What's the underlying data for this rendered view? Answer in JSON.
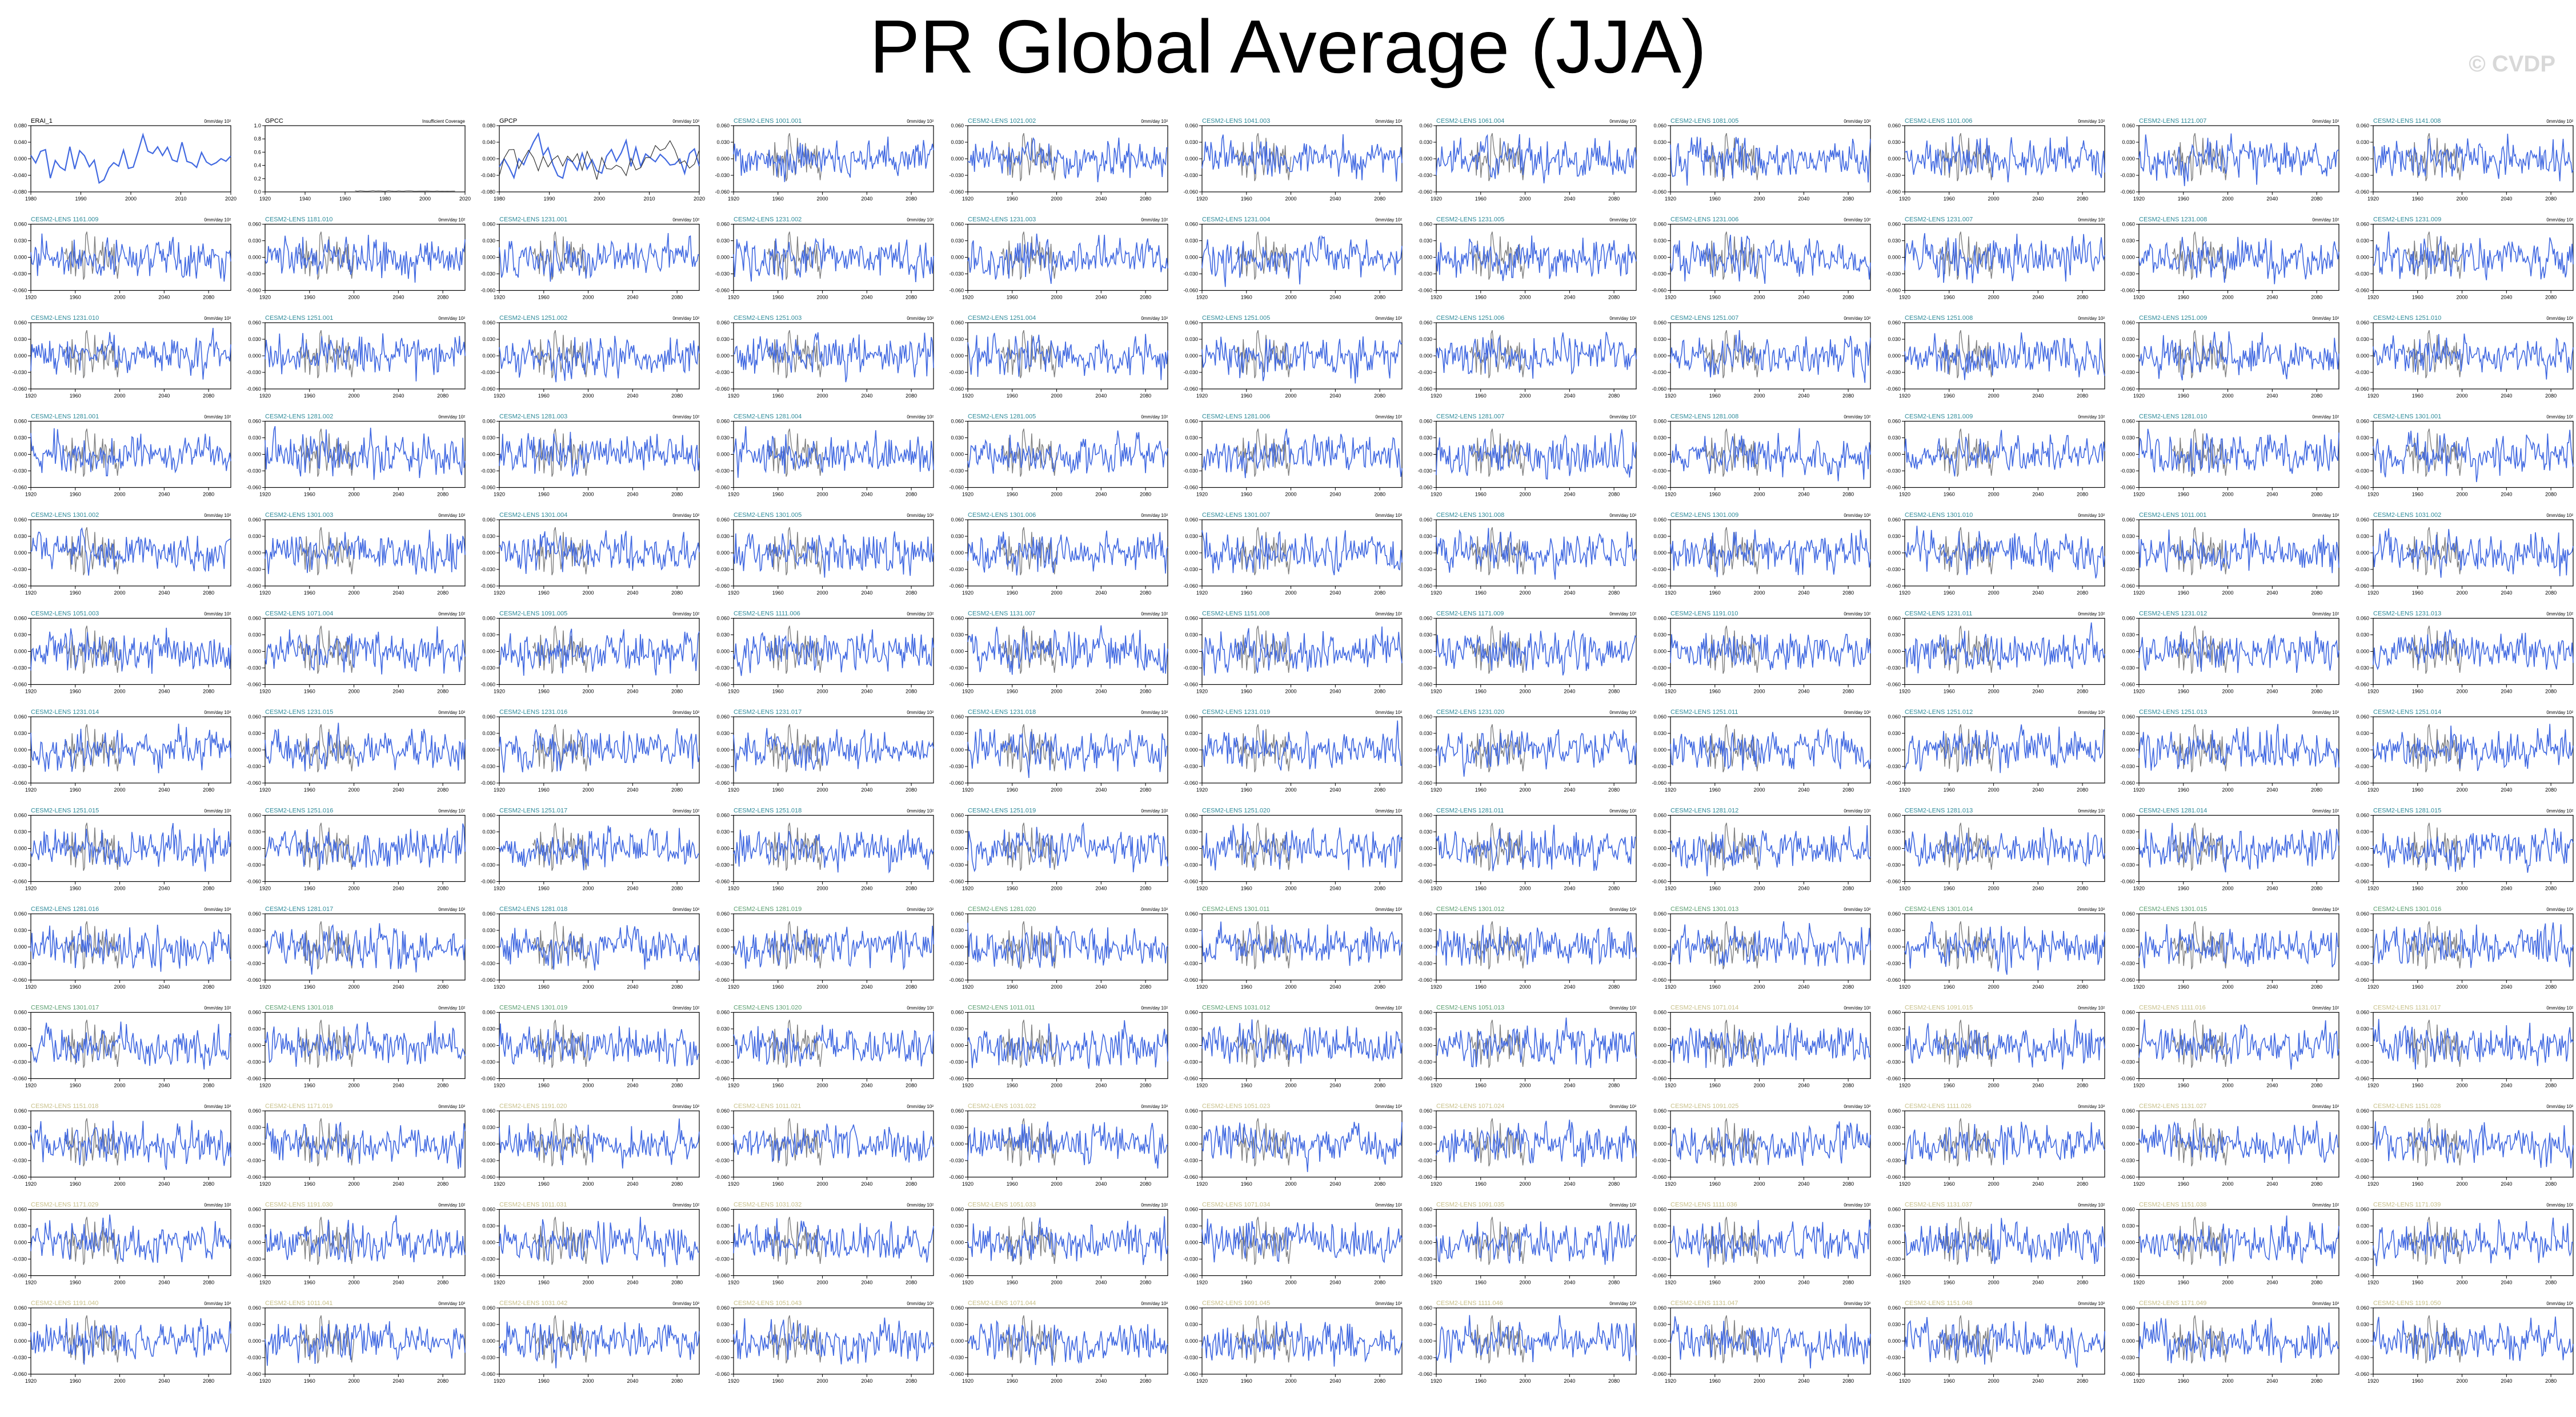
{
  "page": {
    "title": "PR Global Average (JJA)",
    "watermark": "© CVDP"
  },
  "colors": {
    "model_line": "#4169e1",
    "obs_line": "#808080",
    "label_teal": "#2e8b9a",
    "label_green": "#5a9e6f",
    "label_khaki": "#c8c08a"
  },
  "chart_data": {
    "type": "line",
    "layout": {
      "rows": 13,
      "cols": 11
    },
    "observations": [
      {
        "name": "ERAI_1",
        "units": "0mm/day 10²",
        "x_ticks": [
          "1980",
          "1990",
          "2000",
          "2010",
          "2020"
        ],
        "y_ticks": [
          "0.080",
          "0.040",
          "0.000",
          "-0.040",
          "-0.080"
        ],
        "ylim": [
          -0.08,
          0.08
        ]
      },
      {
        "name": "GPCC",
        "units": "Insufficient Coverage",
        "x_ticks": [
          "1920",
          "1940",
          "1960",
          "1980",
          "2000",
          "2020"
        ],
        "y_ticks": [
          "1.0",
          "0.8",
          "0.6",
          "0.4",
          "0.2",
          "0.0"
        ],
        "ylim": [
          0,
          1
        ]
      },
      {
        "name": "GPCP",
        "units": "0mm/day 10²",
        "x_ticks": [
          "1980",
          "1990",
          "2000",
          "2010",
          "2020"
        ],
        "y_ticks": [
          "0.080",
          "0.040",
          "0.000",
          "-0.040",
          "-0.080"
        ],
        "ylim": [
          -0.08,
          0.08
        ]
      }
    ],
    "ensemble": {
      "model": "CESM2-LENS",
      "units": "0mm/day 10²",
      "x_ticks": [
        "1920",
        "1960",
        "2000",
        "2040",
        "2080"
      ],
      "y_ticks": [
        "0.060",
        "0.030",
        "0.000",
        "-0.030",
        "-0.060"
      ],
      "ylim": [
        -0.06,
        0.06
      ],
      "xlim": [
        1920,
        2100
      ],
      "members": [
        "CESM2-LENS 1001.001",
        "CESM2-LENS 1021.002",
        "CESM2-LENS 1041.003",
        "CESM2-LENS 1061.004",
        "CESM2-LENS 1081.005",
        "CESM2-LENS 1101.006",
        "CESM2-LENS 1121.007",
        "CESM2-LENS 1141.008",
        "CESM2-LENS 1161.009",
        "CESM2-LENS 1181.010",
        "CESM2-LENS 1231.001",
        "CESM2-LENS 1231.002",
        "CESM2-LENS 1231.003",
        "CESM2-LENS 1231.004",
        "CESM2-LENS 1231.005",
        "CESM2-LENS 1231.006",
        "CESM2-LENS 1231.007",
        "CESM2-LENS 1231.008",
        "CESM2-LENS 1231.009",
        "CESM2-LENS 1231.010",
        "CESM2-LENS 1251.001",
        "CESM2-LENS 1251.002",
        "CESM2-LENS 1251.003",
        "CESM2-LENS 1251.004",
        "CESM2-LENS 1251.005",
        "CESM2-LENS 1251.006",
        "CESM2-LENS 1251.007",
        "CESM2-LENS 1251.008",
        "CESM2-LENS 1251.009",
        "CESM2-LENS 1251.010",
        "CESM2-LENS 1281.001",
        "CESM2-LENS 1281.002",
        "CESM2-LENS 1281.003",
        "CESM2-LENS 1281.004",
        "CESM2-LENS 1281.005",
        "CESM2-LENS 1281.006",
        "CESM2-LENS 1281.007",
        "CESM2-LENS 1281.008",
        "CESM2-LENS 1281.009",
        "CESM2-LENS 1281.010",
        "CESM2-LENS 1301.001",
        "CESM2-LENS 1301.002",
        "CESM2-LENS 1301.003",
        "CESM2-LENS 1301.004",
        "CESM2-LENS 1301.005",
        "CESM2-LENS 1301.006",
        "CESM2-LENS 1301.007",
        "CESM2-LENS 1301.008",
        "CESM2-LENS 1301.009",
        "CESM2-LENS 1301.010",
        "CESM2-LENS 1011.001",
        "CESM2-LENS 1031.002",
        "CESM2-LENS 1051.003",
        "CESM2-LENS 1071.004",
        "CESM2-LENS 1091.005",
        "CESM2-LENS 1111.006",
        "CESM2-LENS 1131.007",
        "CESM2-LENS 1151.008",
        "CESM2-LENS 1171.009",
        "CESM2-LENS 1191.010",
        "CESM2-LENS 1231.011",
        "CESM2-LENS 1231.012",
        "CESM2-LENS 1231.013",
        "CESM2-LENS 1231.014",
        "CESM2-LENS 1231.015",
        "CESM2-LENS 1231.016",
        "CESM2-LENS 1231.017",
        "CESM2-LENS 1231.018",
        "CESM2-LENS 1231.019",
        "CESM2-LENS 1231.020",
        "CESM2-LENS 1251.011",
        "CESM2-LENS 1251.012",
        "CESM2-LENS 1251.013",
        "CESM2-LENS 1251.014",
        "CESM2-LENS 1251.015",
        "CESM2-LENS 1251.016",
        "CESM2-LENS 1251.017",
        "CESM2-LENS 1251.018",
        "CESM2-LENS 1251.019",
        "CESM2-LENS 1251.020",
        "CESM2-LENS 1281.011",
        "CESM2-LENS 1281.012",
        "CESM2-LENS 1281.013",
        "CESM2-LENS 1281.014",
        "CESM2-LENS 1281.015",
        "CESM2-LENS 1281.016",
        "CESM2-LENS 1281.017",
        "CESM2-LENS 1281.018",
        "CESM2-LENS 1281.019",
        "CESM2-LENS 1281.020",
        "CESM2-LENS 1301.011",
        "CESM2-LENS 1301.012",
        "CESM2-LENS 1301.013",
        "CESM2-LENS 1301.014",
        "CESM2-LENS 1301.015",
        "CESM2-LENS 1301.016",
        "CESM2-LENS 1301.017",
        "CESM2-LENS 1301.018",
        "CESM2-LENS 1301.019",
        "CESM2-LENS 1301.020",
        "CESM2-LENS 1011.011",
        "CESM2-LENS 1031.012",
        "CESM2-LENS 1051.013",
        "CESM2-LENS 1071.014",
        "CESM2-LENS 1091.015",
        "CESM2-LENS 1111.016",
        "CESM2-LENS 1131.017",
        "CESM2-LENS 1151.018",
        "CESM2-LENS 1171.019",
        "CESM2-LENS 1191.020",
        "CESM2-LENS 1011.021",
        "CESM2-LENS 1031.022",
        "CESM2-LENS 1051.023",
        "CESM2-LENS 1071.024",
        "CESM2-LENS 1091.025",
        "CESM2-LENS 1111.026",
        "CESM2-LENS 1131.027",
        "CESM2-LENS 1151.028",
        "CESM2-LENS 1171.029",
        "CESM2-LENS 1191.030",
        "CESM2-LENS 1011.031",
        "CESM2-LENS 1031.032",
        "CESM2-LENS 1051.033",
        "CESM2-LENS 1071.034",
        "CESM2-LENS 1091.035",
        "CESM2-LENS 1111.036",
        "CESM2-LENS 1131.037",
        "CESM2-LENS 1151.038",
        "CESM2-LENS 1171.039",
        "CESM2-LENS 1191.040",
        "CESM2-LENS 1011.041",
        "CESM2-LENS 1031.042",
        "CESM2-LENS 1051.043",
        "CESM2-LENS 1071.044",
        "CESM2-LENS 1091.045",
        "CESM2-LENS 1111.046",
        "CESM2-LENS 1131.047",
        "CESM2-LENS 1151.048",
        "CESM2-LENS 1171.049",
        "CESM2-LENS 1191.050"
      ]
    }
  }
}
